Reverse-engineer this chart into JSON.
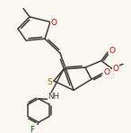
{
  "bg_color": "#faf8f0",
  "line_color": "#3a3a3a",
  "atom_colors": {
    "O": "#cc0000",
    "S": "#996600",
    "N": "#222222",
    "F": "#006600"
  },
  "lw": 1.1,
  "fs": 6.2
}
